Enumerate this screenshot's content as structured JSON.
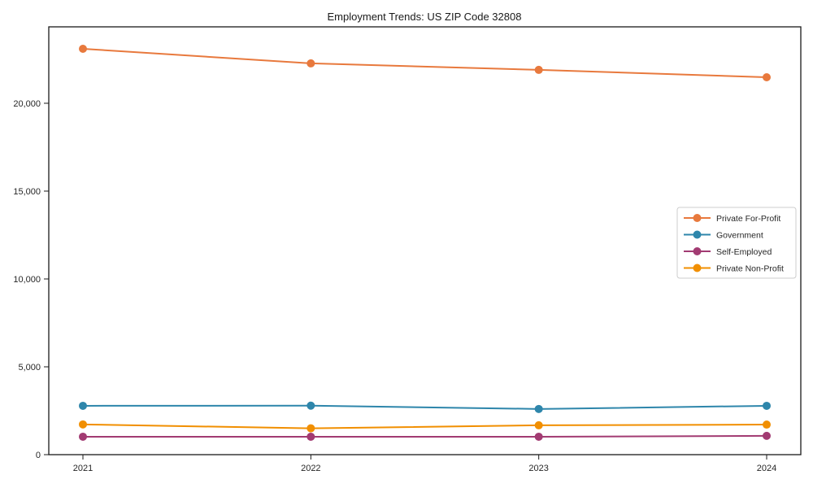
{
  "chart_data": {
    "type": "line",
    "title": "Employment Trends: US ZIP Code 32808",
    "xlabel": "",
    "ylabel": "",
    "categories": [
      "2021",
      "2022",
      "2023",
      "2024"
    ],
    "series": [
      {
        "name": "Private For-Profit",
        "color": "#E8793D",
        "values": [
          23100,
          22270,
          21900,
          21480
        ]
      },
      {
        "name": "Government",
        "color": "#2E86AB",
        "values": [
          2780,
          2790,
          2600,
          2780
        ]
      },
      {
        "name": "Self-Employed",
        "color": "#A23B72",
        "values": [
          1020,
          1020,
          1020,
          1070
        ]
      },
      {
        "name": "Private Non-Profit",
        "color": "#F18F01",
        "values": [
          1720,
          1500,
          1670,
          1710
        ]
      }
    ],
    "ylim": [
      0,
      24350
    ],
    "yticks": [
      {
        "value": 0,
        "label": "0"
      },
      {
        "value": 5000,
        "label": "5,000"
      },
      {
        "value": 10000,
        "label": "10,000"
      },
      {
        "value": 15000,
        "label": "15,000"
      },
      {
        "value": 20000,
        "label": "20,000"
      }
    ],
    "grid": false,
    "legend_position": "center-right",
    "marker": "circle",
    "axis_color": "#1a1a1a",
    "legend_border_color": "#cccccc"
  }
}
